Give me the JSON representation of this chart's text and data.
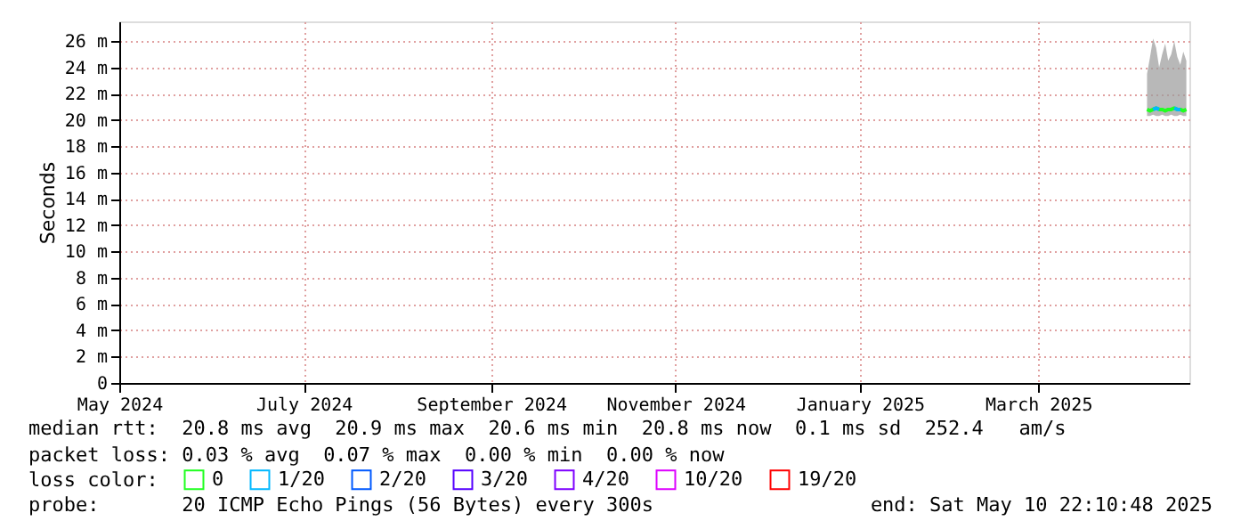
{
  "chart_data": {
    "type": "line",
    "ylabel": "Seconds",
    "x": [
      "2025-04-06",
      "2025-04-07",
      "2025-04-08",
      "2025-04-09",
      "2025-04-10",
      "2025-04-11",
      "2025-04-12",
      "2025-04-13",
      "2025-04-14",
      "2025-04-15",
      "2025-04-16",
      "2025-04-17",
      "2025-04-18",
      "2025-04-19"
    ],
    "series": [
      {
        "name": "0",
        "color": "#20ff20",
        "values": [
          20.8,
          20.7,
          20.8,
          20.9,
          20.8,
          20.8,
          20.7,
          20.8,
          20.8,
          20.9,
          20.8,
          20.8,
          20.7,
          20.8
        ],
        "lower": [
          20.3,
          20.3,
          20.4,
          20.3,
          20.3,
          20.4,
          20.3,
          20.3,
          20.4,
          20.3,
          20.3,
          20.4,
          20.3,
          20.3
        ],
        "upper": [
          23.5,
          24.8,
          26.2,
          25.5,
          24.0,
          25.0,
          25.8,
          24.5,
          25.0,
          26.0,
          24.8,
          24.2,
          25.2,
          24.5
        ]
      },
      {
        "name": "1/20",
        "color": "#00b8ff",
        "values": [
          null,
          null,
          20.8,
          20.9,
          20.8,
          null,
          null,
          null,
          null,
          20.9,
          20.8,
          20.8,
          null,
          null
        ]
      },
      {
        "name": "2/20",
        "color": "#0059ff",
        "values": [
          null,
          null,
          null,
          null,
          null,
          null,
          null,
          null,
          null,
          null,
          null,
          null,
          null,
          null
        ]
      },
      {
        "name": "3/20",
        "color": "#5500ff",
        "values": [
          null,
          null,
          null,
          null,
          null,
          null,
          null,
          null,
          null,
          null,
          null,
          null,
          null,
          null
        ]
      },
      {
        "name": "4/20",
        "color": "#7e00ff",
        "values": [
          null,
          null,
          null,
          null,
          null,
          null,
          null,
          null,
          null,
          null,
          null,
          null,
          null,
          null
        ]
      },
      {
        "name": "10/20",
        "color": "#dd00ff",
        "values": [
          null,
          null,
          null,
          null,
          null,
          null,
          null,
          null,
          null,
          null,
          null,
          null,
          null,
          null
        ]
      },
      {
        "name": "19/20",
        "color": "#ff0000",
        "values": [
          null,
          null,
          null,
          null,
          null,
          null,
          null,
          null,
          null,
          null,
          null,
          null,
          null,
          null
        ]
      }
    ],
    "legend_title": "loss color:",
    "legend": "bottom",
    "xlim": [
      "2024-05-01",
      "2025-04-20"
    ],
    "xticks": [
      {
        "value": "2024-05-01",
        "label": "May 2024"
      },
      {
        "value": "2024-07-01",
        "label": "July 2024"
      },
      {
        "value": "2024-09-01",
        "label": "September 2024"
      },
      {
        "value": "2024-11-01",
        "label": "November 2024"
      },
      {
        "value": "2025-01-01",
        "label": "January 2025"
      },
      {
        "value": "2025-03-01",
        "label": "March 2025"
      }
    ],
    "ylim": [
      0,
      27.5
    ],
    "yticks": [
      0,
      {
        "value": 2,
        "label": "2 m"
      },
      {
        "value": 4,
        "label": "4 m"
      },
      {
        "value": 6,
        "label": "6 m"
      },
      {
        "value": 8,
        "label": "8 m"
      },
      {
        "value": 10,
        "label": "10 m"
      },
      {
        "value": 12,
        "label": "12 m"
      },
      {
        "value": 14,
        "label": "14 m"
      },
      {
        "value": 16,
        "label": "16 m"
      },
      {
        "value": 18,
        "label": "18 m"
      },
      {
        "value": 20,
        "label": "20 m"
      },
      {
        "value": 22,
        "label": "22 m"
      },
      {
        "value": 24,
        "label": "24 m"
      },
      {
        "value": 26,
        "label": "26 m"
      }
    ],
    "grid": true,
    "marker": "none",
    "line_style": "solid",
    "annotations": [
      "median rtt:  20.8 ms avg  20.9 ms max  20.6 ms min  20.8 ms now  0.1 ms sd  252.4   am/s",
      "packet loss: 0.03 % avg  0.07 % max  0.00 % min  0.00 % now",
      "probe:       20 ICMP Echo Pings (56 Bytes) every 300s",
      "end: Sat May 10 22:10:48 2025"
    ]
  }
}
